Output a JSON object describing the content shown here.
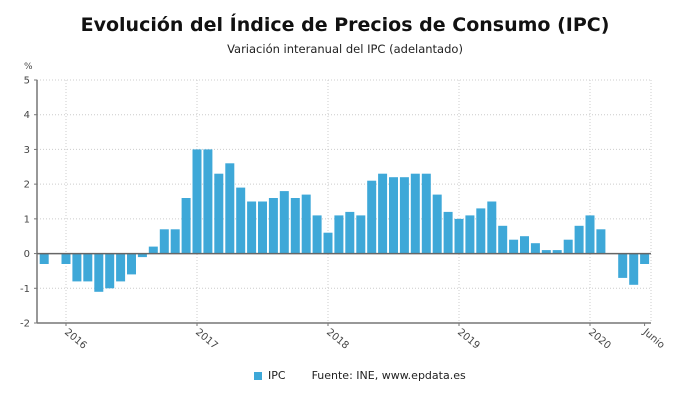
{
  "header": {
    "title": "Evolución del Índice de Precios de Consumo (IPC)",
    "subtitle": "Variación interanual del IPC (adelantado)",
    "unit": "%"
  },
  "legend": {
    "series_label": "IPC",
    "source": "Fuente: INE, www.epdata.es"
  },
  "colors": {
    "bar": "#3ea8d8",
    "grid": "#cccccc",
    "axis": "#777777"
  },
  "chart_data": {
    "type": "bar",
    "title": "Evolución del Índice de Precios de Consumo (IPC)",
    "subtitle": "Variación interanual del IPC (adelantado)",
    "xlabel": "",
    "ylabel": "%",
    "ylim": [
      -2,
      5
    ],
    "yticks": [
      5,
      4,
      3,
      2,
      1,
      0,
      -1,
      -2
    ],
    "xticks": [
      {
        "label": "2016",
        "index": 2
      },
      {
        "label": "2017",
        "index": 14
      },
      {
        "label": "2018",
        "index": 26
      },
      {
        "label": "2019",
        "index": 38
      },
      {
        "label": "2020",
        "index": 50
      },
      {
        "label": "Junio",
        "index": 55
      }
    ],
    "grid": true,
    "legend_position": "bottom",
    "categories": [
      "2015-11",
      "2015-12",
      "2016-01",
      "2016-02",
      "2016-03",
      "2016-04",
      "2016-05",
      "2016-06",
      "2016-07",
      "2016-08",
      "2016-09",
      "2016-10",
      "2016-11",
      "2016-12",
      "2017-01",
      "2017-02",
      "2017-03",
      "2017-04",
      "2017-05",
      "2017-06",
      "2017-07",
      "2017-08",
      "2017-09",
      "2017-10",
      "2017-11",
      "2017-12",
      "2018-01",
      "2018-02",
      "2018-03",
      "2018-04",
      "2018-05",
      "2018-06",
      "2018-07",
      "2018-08",
      "2018-09",
      "2018-10",
      "2018-11",
      "2018-12",
      "2019-01",
      "2019-02",
      "2019-03",
      "2019-04",
      "2019-05",
      "2019-06",
      "2019-07",
      "2019-08",
      "2019-09",
      "2019-10",
      "2019-11",
      "2019-12",
      "2020-01",
      "2020-02",
      "2020-03",
      "2020-04",
      "2020-05",
      "2020-06"
    ],
    "series": [
      {
        "name": "IPC",
        "values": [
          -0.3,
          0.0,
          -0.3,
          -0.8,
          -0.8,
          -1.1,
          -1.0,
          -0.8,
          -0.6,
          -0.1,
          0.2,
          0.7,
          0.7,
          1.6,
          3.0,
          3.0,
          2.3,
          2.6,
          1.9,
          1.5,
          1.5,
          1.6,
          1.8,
          1.6,
          1.7,
          1.1,
          0.6,
          1.1,
          1.2,
          1.1,
          2.1,
          2.3,
          2.2,
          2.2,
          2.3,
          2.3,
          1.7,
          1.2,
          1.0,
          1.1,
          1.3,
          1.5,
          0.8,
          0.4,
          0.5,
          0.3,
          0.1,
          0.1,
          0.4,
          0.8,
          1.1,
          0.7,
          0.0,
          -0.7,
          -0.9,
          -0.3
        ]
      }
    ],
    "source": "Fuente: INE, www.epdata.es"
  }
}
